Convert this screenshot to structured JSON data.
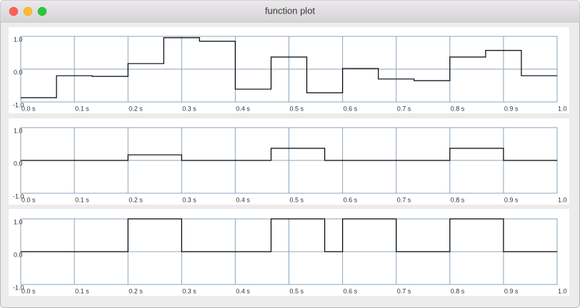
{
  "window": {
    "title": "function plot"
  },
  "chart_data": [
    {
      "type": "line",
      "color": "#000000",
      "grid": true,
      "x": [
        0,
        0.0667,
        0.0667,
        0.1333,
        0.1333,
        0.2,
        0.2,
        0.2667,
        0.2667,
        0.3333,
        0.3333,
        0.4,
        0.4,
        0.4667,
        0.4667,
        0.5333,
        0.5333,
        0.6,
        0.6,
        0.6667,
        0.6667,
        0.7333,
        0.7333,
        0.8,
        0.8,
        0.8667,
        0.8667,
        0.9333,
        0.9333,
        1
      ],
      "values": [
        -0.87,
        -0.87,
        -0.2,
        -0.2,
        -0.22,
        -0.22,
        0.17,
        0.17,
        0.96,
        0.96,
        0.85,
        0.85,
        -0.61,
        -0.61,
        0.37,
        0.37,
        -0.72,
        -0.72,
        0.02,
        0.02,
        -0.3,
        -0.3,
        -0.35,
        -0.35,
        0.37,
        0.37,
        0.57,
        0.57,
        -0.2,
        -0.2
      ],
      "xlim": [
        0,
        1
      ],
      "ylim": [
        -1,
        1
      ],
      "xticks": [
        {
          "value": 0,
          "label": "0.0 s"
        },
        {
          "value": 0.1,
          "label": "0.1 s"
        },
        {
          "value": 0.2,
          "label": "0.2 s"
        },
        {
          "value": 0.3,
          "label": "0.3 s"
        },
        {
          "value": 0.4,
          "label": "0.4 s"
        },
        {
          "value": 0.5,
          "label": "0.5 s"
        },
        {
          "value": 0.6,
          "label": "0.6 s"
        },
        {
          "value": 0.7,
          "label": "0.7 s"
        },
        {
          "value": 0.8,
          "label": "0.8 s"
        },
        {
          "value": 0.9,
          "label": "0.9 s"
        },
        {
          "value": 1,
          "label": "1.0"
        }
      ],
      "yticks": [
        {
          "value": 1,
          "label": "1.0"
        },
        {
          "value": 0,
          "label": "0.0"
        },
        {
          "value": -1,
          "label": "-1.0"
        }
      ]
    },
    {
      "type": "line",
      "color": "#000000",
      "grid": true,
      "x": [
        0,
        0.2,
        0.2,
        0.3,
        0.3,
        0.4667,
        0.4667,
        0.5667,
        0.5667,
        0.8,
        0.8,
        0.9,
        0.9,
        1
      ],
      "values": [
        0,
        0,
        0.17,
        0.17,
        0,
        0,
        0.37,
        0.37,
        0,
        0,
        0.37,
        0.37,
        0,
        0
      ],
      "xlim": [
        0,
        1
      ],
      "ylim": [
        -1,
        1
      ],
      "xticks": [
        {
          "value": 0,
          "label": "0.0 s"
        },
        {
          "value": 0.1,
          "label": "0.1 s"
        },
        {
          "value": 0.2,
          "label": "0.2 s"
        },
        {
          "value": 0.3,
          "label": "0.3 s"
        },
        {
          "value": 0.4,
          "label": "0.4 s"
        },
        {
          "value": 0.5,
          "label": "0.5 s"
        },
        {
          "value": 0.6,
          "label": "0.6 s"
        },
        {
          "value": 0.7,
          "label": "0.7 s"
        },
        {
          "value": 0.8,
          "label": "0.8 s"
        },
        {
          "value": 0.9,
          "label": "0.9 s"
        },
        {
          "value": 1,
          "label": "1.0"
        }
      ],
      "yticks": [
        {
          "value": 1,
          "label": "1.0"
        },
        {
          "value": 0,
          "label": "0.0"
        },
        {
          "value": -1,
          "label": "-1.0"
        }
      ]
    },
    {
      "type": "line",
      "color": "#000000",
      "grid": true,
      "x": [
        0,
        0.2,
        0.2,
        0.3,
        0.3,
        0.4667,
        0.4667,
        0.5667,
        0.5667,
        0.6,
        0.6,
        0.7,
        0.7,
        0.8,
        0.8,
        0.9,
        0.9,
        1
      ],
      "values": [
        0,
        0,
        1,
        1,
        0,
        0,
        1,
        1,
        0,
        0,
        1,
        1,
        0,
        0,
        1,
        1,
        0,
        0
      ],
      "xlim": [
        0,
        1
      ],
      "ylim": [
        -1,
        1
      ],
      "xticks": [
        {
          "value": 0,
          "label": "0.0 s"
        },
        {
          "value": 0.1,
          "label": "0.1 s"
        },
        {
          "value": 0.2,
          "label": "0.2 s"
        },
        {
          "value": 0.3,
          "label": "0.3 s"
        },
        {
          "value": 0.4,
          "label": "0.4 s"
        },
        {
          "value": 0.5,
          "label": "0.5 s"
        },
        {
          "value": 0.6,
          "label": "0.6 s"
        },
        {
          "value": 0.7,
          "label": "0.7 s"
        },
        {
          "value": 0.8,
          "label": "0.8 s"
        },
        {
          "value": 0.9,
          "label": "0.9 s"
        },
        {
          "value": 1,
          "label": "1.0"
        }
      ],
      "yticks": [
        {
          "value": 1,
          "label": "1.0"
        },
        {
          "value": 0,
          "label": "0.0"
        },
        {
          "value": -1,
          "label": "-1.0"
        }
      ]
    }
  ]
}
